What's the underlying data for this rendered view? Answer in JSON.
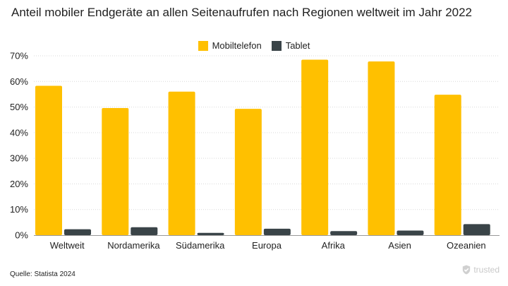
{
  "chart_data": {
    "type": "bar",
    "title": "Anteil mobiler Endgeräte an allen Seitenaufrufen nach Regionen weltweit im Jahr 2022",
    "categories": [
      "Weltweit",
      "Nordamerika",
      "Südamerika",
      "Europa",
      "Afrika",
      "Asien",
      "Ozeanien"
    ],
    "series": [
      {
        "name": "Mobiltelefon",
        "color": "#FFC000",
        "values": [
          58.3,
          49.6,
          56.0,
          49.3,
          68.5,
          67.8,
          54.8
        ]
      },
      {
        "name": "Tablet",
        "color": "#3A4448",
        "values": [
          2.3,
          3.1,
          0.9,
          2.5,
          1.6,
          1.8,
          4.3
        ]
      }
    ],
    "ylim": [
      0,
      70
    ],
    "yticks": [
      0,
      10,
      20,
      30,
      40,
      50,
      60,
      70
    ],
    "ytick_labels": [
      "0%",
      "10%",
      "20%",
      "30%",
      "40%",
      "50%",
      "60%",
      "70%"
    ],
    "grid": true,
    "legend_position": "top-center"
  },
  "source": "Quelle: Statista 2024",
  "brand": "trusted",
  "brand_icon": "shield-check-icon"
}
